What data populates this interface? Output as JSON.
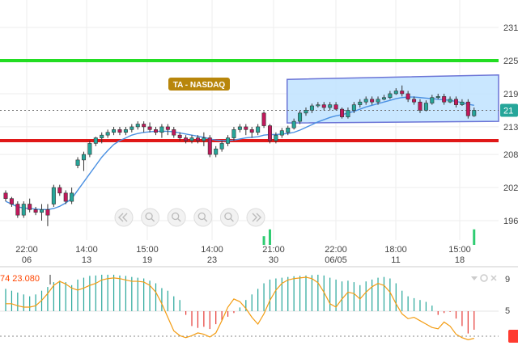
{
  "chart_data": [
    {
      "type": "candlestick",
      "title": "",
      "y_ticks": [
        196,
        202,
        208,
        213,
        219,
        225,
        231
      ],
      "y_axis_side": "right",
      "x_ticks": [
        {
          "time": "22:00",
          "date": "06"
        },
        {
          "time": "14:00",
          "date": "13"
        },
        {
          "time": "15:00",
          "date": "19"
        },
        {
          "time": "14:00",
          "date": "23"
        },
        {
          "time": "21:00",
          "date": "30"
        },
        {
          "time": "22:00",
          "date": "06/05"
        },
        {
          "time": "18:00",
          "date": "11"
        },
        {
          "time": "15:00",
          "date": "18"
        }
      ],
      "last_price_label": "21",
      "horizontal_lines": [
        {
          "name": "upper-level",
          "value": 225,
          "color": "#22dd22"
        },
        {
          "name": "lower-level",
          "value": 210.5,
          "color": "#e01818"
        },
        {
          "name": "last-price",
          "value": 216,
          "color": "#666666",
          "style": "dotted"
        }
      ],
      "annotation": {
        "text": "TA - NASDAQ",
        "color": "#b8860b"
      },
      "channel": {
        "x_start": 47,
        "x_end": 75,
        "top": [
          221.6,
          222.4
        ],
        "bottom": [
          213.7,
          214.0
        ],
        "fill": "#bfe3ff",
        "stroke": "#6b74d6"
      },
      "moving_average_color": "#4a90e2",
      "up_color": "#26a69a",
      "down_color": "#c2185b",
      "candles": [
        [
          201,
          200,
          201.5,
          199.5
        ],
        [
          200,
          199,
          200.3,
          198.5
        ],
        [
          199,
          197,
          199.5,
          196.5
        ],
        [
          197,
          199,
          199.5,
          196.5
        ],
        [
          199,
          198,
          200,
          197.5
        ],
        [
          198,
          197.5,
          198.5,
          197
        ],
        [
          197.5,
          198,
          199,
          196
        ],
        [
          198,
          197,
          199,
          195
        ],
        [
          199,
          202,
          202.5,
          198.5
        ],
        [
          202,
          201,
          202.5,
          200.5
        ],
        [
          201,
          199.5,
          201.5,
          199
        ],
        [
          199.5,
          201,
          202,
          199
        ],
        [
          206,
          207,
          207.5,
          205.5
        ],
        [
          207,
          208,
          208.5,
          205
        ],
        [
          208,
          210,
          210.5,
          207.5
        ],
        [
          210,
          211,
          211.2,
          209.5
        ],
        [
          211,
          211.5,
          212,
          210
        ],
        [
          211.5,
          212,
          212.5,
          211
        ],
        [
          212,
          212.5,
          213,
          211.5
        ],
        [
          212.5,
          212,
          213,
          211.5
        ],
        [
          212,
          212.5,
          213,
          211.5
        ],
        [
          212.5,
          213,
          213.5,
          212
        ],
        [
          213,
          213.5,
          214,
          212.5
        ],
        [
          213.5,
          213,
          214,
          212
        ],
        [
          213,
          212.5,
          213.8,
          212
        ],
        [
          212.5,
          212,
          213,
          211.5
        ],
        [
          212,
          213,
          213.5,
          211
        ],
        [
          213,
          212.5,
          213.5,
          211.5
        ],
        [
          212.5,
          211.5,
          213,
          211
        ],
        [
          211.5,
          211,
          212,
          210.5
        ],
        [
          211,
          210.5,
          211.5,
          210
        ],
        [
          210.5,
          211,
          211.5,
          210
        ],
        [
          211,
          210.5,
          211.5,
          210
        ],
        [
          210.5,
          211,
          212,
          209.5
        ],
        [
          211,
          208,
          211.5,
          207.5
        ],
        [
          208,
          209,
          209.5,
          207.5
        ],
        [
          209,
          210,
          210.5,
          208.5
        ],
        [
          210,
          211,
          211.5,
          209.5
        ],
        [
          211,
          212.5,
          213,
          210.5
        ],
        [
          212.5,
          213,
          213.5,
          212
        ],
        [
          213,
          212.5,
          213.5,
          211.5
        ],
        [
          212.5,
          212,
          213,
          211
        ],
        [
          212,
          213,
          213.5,
          211.5
        ],
        [
          215.5,
          213.2,
          215.8,
          212.8
        ],
        [
          213.2,
          210.5,
          213.5,
          210
        ],
        [
          210.5,
          211.5,
          212,
          210
        ],
        [
          211.5,
          212.3,
          212.8,
          211
        ],
        [
          212,
          212.8,
          213.2,
          211.5
        ],
        [
          212.8,
          214,
          214.5,
          212.5
        ],
        [
          214,
          215.5,
          216,
          213.5
        ],
        [
          215.5,
          216,
          216.5,
          215
        ],
        [
          216,
          216.8,
          217.2,
          215.5
        ],
        [
          216.8,
          217,
          217.5,
          216.5
        ],
        [
          217,
          216.5,
          217.5,
          216
        ],
        [
          216.5,
          217,
          217.5,
          216
        ],
        [
          217,
          216.2,
          217.5,
          216
        ],
        [
          216.2,
          214.8,
          216.5,
          214.5
        ],
        [
          214.8,
          216,
          216.5,
          214.5
        ],
        [
          216,
          217,
          217.5,
          215.5
        ],
        [
          217,
          217.5,
          218,
          216.5
        ],
        [
          217.5,
          218,
          218.5,
          217
        ],
        [
          218,
          217.5,
          218.5,
          217
        ],
        [
          217.5,
          218,
          218.5,
          217
        ],
        [
          218,
          218.3,
          218.8,
          217.8
        ],
        [
          218.3,
          219,
          219.5,
          218
        ],
        [
          219,
          219.5,
          220,
          218.8
        ],
        [
          219.5,
          219,
          220.5,
          218.5
        ],
        [
          219,
          218,
          219.5,
          217.5
        ],
        [
          218,
          217.5,
          218.5,
          217
        ],
        [
          217.5,
          216,
          218,
          215.5
        ],
        [
          216,
          217.3,
          217.8,
          215.8
        ],
        [
          217.3,
          218.3,
          218.8,
          217
        ],
        [
          218.3,
          218.5,
          219,
          218
        ],
        [
          218.5,
          217.5,
          219,
          217
        ],
        [
          217.5,
          218,
          218.5,
          217.3
        ],
        [
          218,
          217,
          218.5,
          216.5
        ],
        [
          217,
          217.5,
          218,
          216.8
        ],
        [
          217.5,
          215,
          218,
          214.5
        ],
        [
          215,
          216,
          216.5,
          214.8
        ]
      ],
      "moving_average": [
        199.5,
        199,
        198.5,
        198.3,
        198.2,
        198.1,
        198,
        198,
        198.2,
        198.6,
        199.2,
        200,
        201.5,
        203,
        204.5,
        206,
        207.5,
        208.7,
        209.8,
        210.5,
        211,
        211.5,
        211.8,
        212,
        212.1,
        212.2,
        212.2,
        212.2,
        212.1,
        211.9,
        211.7,
        211.5,
        211.3,
        211.1,
        210.8,
        210.6,
        210.5,
        210.5,
        210.6,
        210.8,
        211,
        211.1,
        211.2,
        211.5,
        211.6,
        211.6,
        211.7,
        211.8,
        212,
        212.4,
        212.9,
        213.4,
        213.9,
        214.3,
        214.7,
        215,
        215.2,
        215.5,
        215.8,
        216.2,
        216.6,
        216.9,
        217.2,
        217.5,
        217.8,
        218.1,
        218.3,
        218.4,
        218.4,
        218.3,
        218.2,
        218.1,
        218,
        217.9,
        217.8,
        217.6,
        217.4,
        217.1,
        216.9
      ],
      "volume_bars": [
        {
          "index": 43,
          "height": 0.45
        },
        {
          "index": 44,
          "height": 0.8
        },
        {
          "index": 78,
          "height": 0.8
        }
      ],
      "volume_color": "#2ecc71"
    },
    {
      "type": "oscillator",
      "value_text": "74 23.080",
      "value_color": "#ff4500",
      "y_ticks": [
        5,
        9
      ],
      "last_value_marker_color": "#ff3b30",
      "histogram": [
        60,
        55,
        50,
        45,
        40,
        45,
        55,
        65,
        78,
        82,
        78,
        70,
        85,
        90,
        95,
        96,
        98,
        98,
        98,
        96,
        95,
        92,
        90,
        88,
        82,
        75,
        62,
        55,
        40,
        30,
        -10,
        -40,
        -45,
        -42,
        -48,
        -35,
        -25,
        -15,
        -5,
        10,
        30,
        45,
        60,
        75,
        85,
        88,
        90,
        92,
        94,
        95,
        96,
        97,
        98,
        96,
        90,
        85,
        80,
        82,
        78,
        70,
        80,
        85,
        90,
        92,
        88,
        75,
        55,
        40,
        35,
        30,
        25,
        15,
        -10,
        -5,
        -2,
        -20,
        -40,
        -60,
        -50
      ],
      "line": [
        0.55,
        0.55,
        0.52,
        0.5,
        0.5,
        0.52,
        0.6,
        0.7,
        0.82,
        0.88,
        0.84,
        0.78,
        0.75,
        0.78,
        0.82,
        0.85,
        0.9,
        0.92,
        0.93,
        0.92,
        0.9,
        0.88,
        0.88,
        0.87,
        0.82,
        0.72,
        0.55,
        0.35,
        0.15,
        0.08,
        0.05,
        0.08,
        0.12,
        0.1,
        0.06,
        0.12,
        0.3,
        0.5,
        0.62,
        0.58,
        0.48,
        0.35,
        0.25,
        0.4,
        0.6,
        0.75,
        0.85,
        0.9,
        0.92,
        0.93,
        0.94,
        0.92,
        0.86,
        0.72,
        0.55,
        0.5,
        0.62,
        0.72,
        0.7,
        0.62,
        0.72,
        0.8,
        0.85,
        0.82,
        0.72,
        0.55,
        0.4,
        0.33,
        0.35,
        0.3,
        0.25,
        0.2,
        0.18,
        0.28,
        0.22,
        0.1,
        0.05,
        0.02,
        0.04
      ],
      "pos_color": "#26a69a",
      "neg_color": "#e53935",
      "line_color": "#f39c12"
    }
  ],
  "toolbar": {
    "icons": [
      "rewind-icon",
      "zoom-in-icon",
      "zoom-out-icon",
      "zoom-in-icon",
      "zoom-out-icon",
      "fast-forward-icon"
    ]
  },
  "oscillator_controls": [
    "shift-icon",
    "settings-icon",
    "close-icon"
  ]
}
